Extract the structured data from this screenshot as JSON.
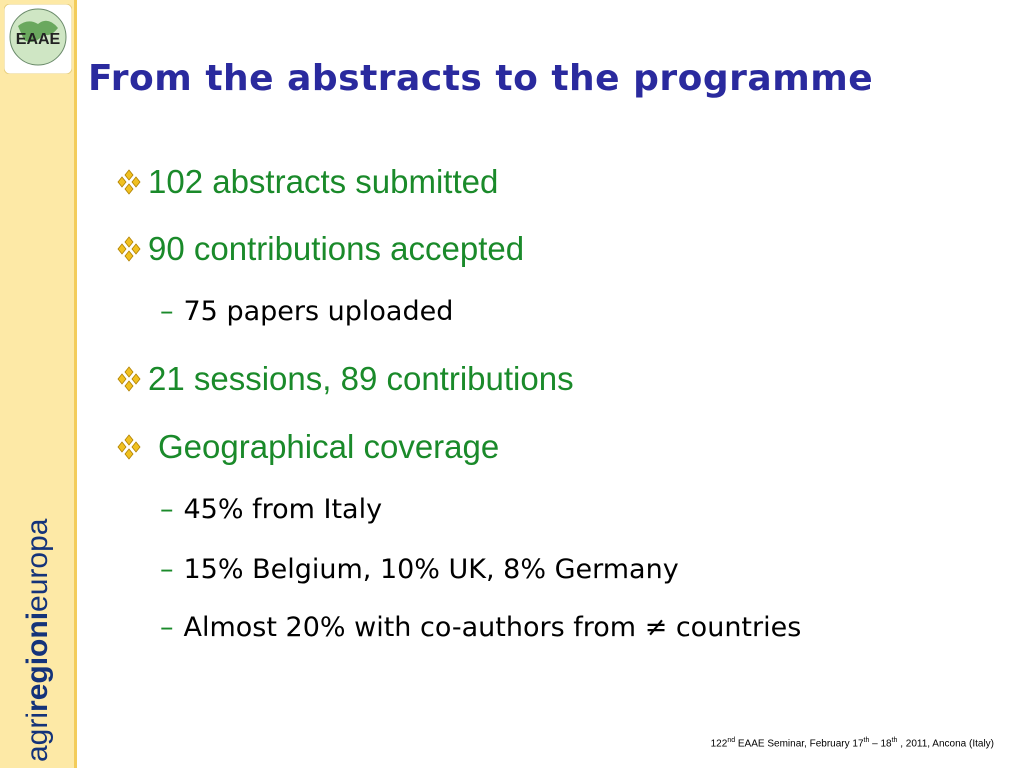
{
  "logo": "EAAE",
  "sidebar_brand": [
    "agri",
    "regioni",
    "europa"
  ],
  "title": "From the abstracts to the programme",
  "bullets": [
    {
      "text": "102 abstracts submitted",
      "sub": []
    },
    {
      "text": "90 contributions accepted",
      "sub": [
        "75 papers uploaded"
      ]
    },
    {
      "text": "21 sessions, 89 contributions",
      "sub": []
    },
    {
      "text": "Geographical coverage",
      "sub": [
        "45% from Italy",
        "15% Belgium, 10% UK, 8% Germany",
        "Almost 20% with co-authors from ≠ countries"
      ]
    }
  ],
  "footer": [
    "122",
    "nd",
    " EAAE Seminar, February 17",
    "th",
    " – 18",
    "th",
    " , 2011, Ancona (Italy)"
  ]
}
